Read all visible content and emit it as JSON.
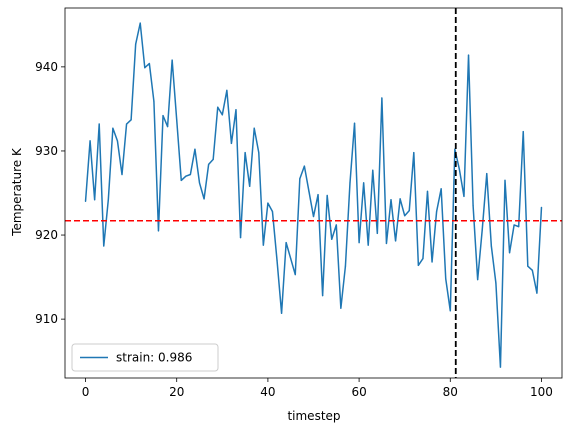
{
  "chart_data": {
    "type": "line",
    "title": "",
    "xlabel": "timestep",
    "ylabel": "Temperature K",
    "xlim": [
      -4.5,
      104.5
    ],
    "ylim": [
      903.0,
      947.0
    ],
    "xticks": [
      0,
      20,
      40,
      60,
      80,
      100
    ],
    "yticks": [
      910,
      920,
      930,
      940
    ],
    "grid": false,
    "legend_position": "lower-left",
    "series": [
      {
        "name": "strain: 0.986",
        "color": "#1f77b4",
        "x": [
          0,
          1,
          2,
          3,
          4,
          5,
          6,
          7,
          8,
          9,
          10,
          11,
          12,
          13,
          14,
          15,
          16,
          17,
          18,
          19,
          20,
          21,
          22,
          23,
          24,
          25,
          26,
          27,
          28,
          29,
          30,
          31,
          32,
          33,
          34,
          35,
          36,
          37,
          38,
          39,
          40,
          41,
          42,
          43,
          44,
          45,
          46,
          47,
          48,
          49,
          50,
          51,
          52,
          53,
          54,
          55,
          56,
          57,
          58,
          59,
          60,
          61,
          62,
          63,
          64,
          65,
          66,
          67,
          68,
          69,
          70,
          71,
          72,
          73,
          74,
          75,
          76,
          77,
          78,
          79,
          80,
          81,
          82,
          83,
          84,
          85,
          86,
          87,
          88,
          89,
          90,
          91,
          92,
          93,
          94,
          95,
          96,
          97,
          98,
          99,
          100
        ],
        "values": [
          924.0,
          931.2,
          924.2,
          933.2,
          918.7,
          924.2,
          932.7,
          931.2,
          927.2,
          933.2,
          933.7,
          942.7,
          945.2,
          939.9,
          940.4,
          935.9,
          920.5,
          934.2,
          932.9,
          940.8,
          933.7,
          926.5,
          927.0,
          927.2,
          930.2,
          926.2,
          924.3,
          928.4,
          929.0,
          935.2,
          934.3,
          937.2,
          930.9,
          934.9,
          919.7,
          929.8,
          925.8,
          932.7,
          929.8,
          918.8,
          923.8,
          922.8,
          917.0,
          910.7,
          919.1,
          917.2,
          915.3,
          926.7,
          928.2,
          925.2,
          922.2,
          924.8,
          912.8,
          924.7,
          919.5,
          921.2,
          911.3,
          916.3,
          926.2,
          933.3,
          919.1,
          926.2,
          918.8,
          927.7,
          920.2,
          936.3,
          919.0,
          924.2,
          919.3,
          924.3,
          922.3,
          922.9,
          929.8,
          916.4,
          917.2,
          925.2,
          916.8,
          922.8,
          925.5,
          914.8,
          911.0,
          930.2,
          927.8,
          924.6,
          941.4,
          923.5,
          914.7,
          920.6,
          927.3,
          918.7,
          914.3,
          904.3,
          926.5,
          917.9,
          921.2,
          921.0,
          932.3,
          916.3,
          915.8,
          913.1,
          923.3
        ]
      }
    ],
    "reference_lines": [
      {
        "orientation": "horizontal",
        "value": 921.7,
        "color": "#ff0000",
        "style": "dashed"
      },
      {
        "orientation": "vertical",
        "value": 81.2,
        "color": "#000000",
        "style": "dashed"
      }
    ]
  }
}
